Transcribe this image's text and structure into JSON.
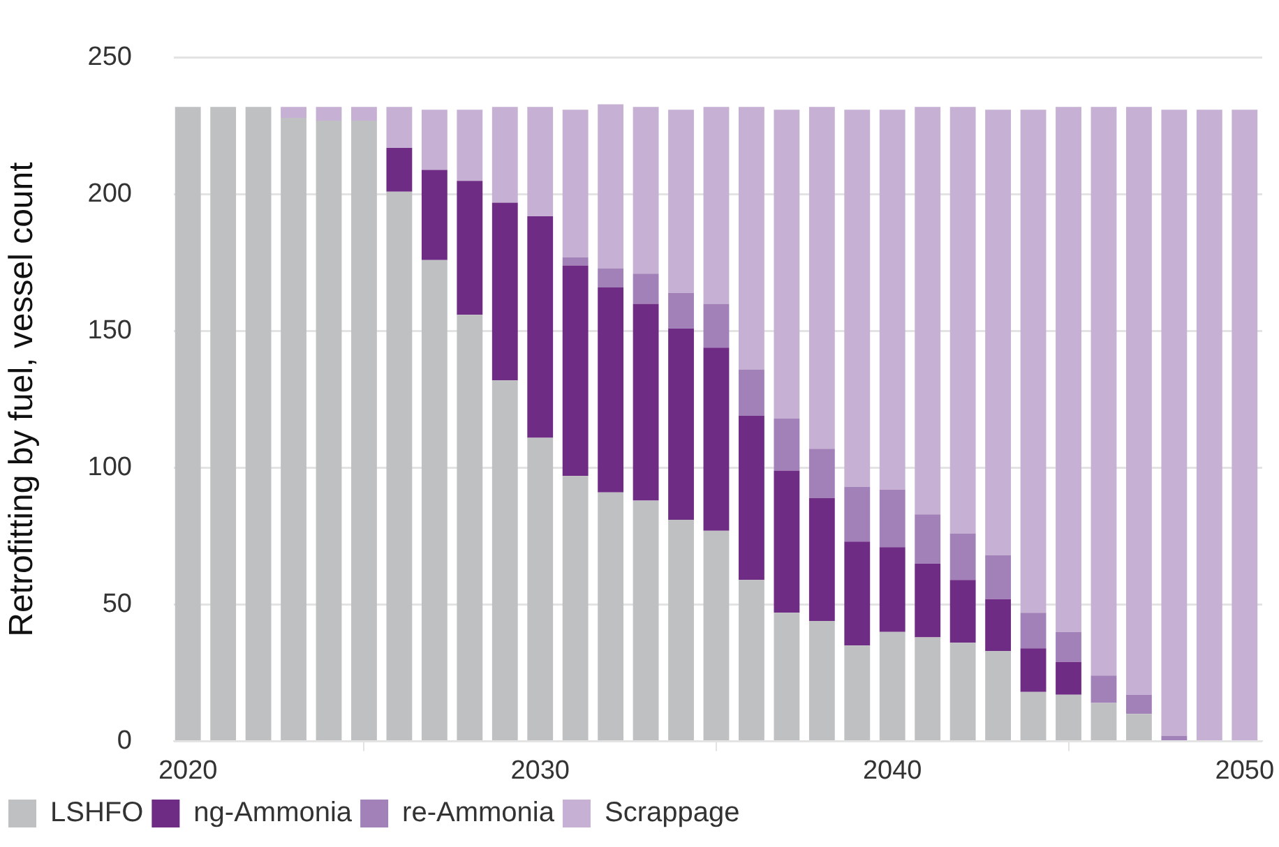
{
  "chart_data": {
    "type": "bar",
    "stacked": true,
    "ylabel": "Retrofitting by fuel, vessel count",
    "x": [
      2020,
      2021,
      2022,
      2023,
      2024,
      2025,
      2026,
      2027,
      2028,
      2029,
      2030,
      2031,
      2032,
      2033,
      2034,
      2035,
      2036,
      2037,
      2038,
      2039,
      2040,
      2041,
      2042,
      2043,
      2044,
      2045,
      2046,
      2047,
      2048,
      2049,
      2050
    ],
    "series": [
      {
        "name": "LSHFO",
        "color": "#bfc0c2",
        "values": [
          232,
          232,
          232,
          228,
          227,
          227,
          201,
          176,
          156,
          132,
          111,
          97,
          91,
          88,
          81,
          77,
          59,
          47,
          44,
          35,
          40,
          38,
          36,
          33,
          18,
          17,
          14,
          10,
          0,
          0,
          0
        ]
      },
      {
        "name": "ng-Ammonia",
        "color": "#6f2c84",
        "values": [
          0,
          0,
          0,
          0,
          0,
          0,
          16,
          33,
          49,
          65,
          81,
          77,
          75,
          72,
          70,
          67,
          60,
          52,
          45,
          38,
          31,
          27,
          23,
          19,
          16,
          12,
          0,
          0,
          0,
          0,
          0
        ]
      },
      {
        "name": "re-Ammonia",
        "color": "#a281b8",
        "values": [
          0,
          0,
          0,
          0,
          0,
          0,
          0,
          0,
          0,
          0,
          0,
          3,
          7,
          11,
          13,
          16,
          17,
          19,
          18,
          20,
          21,
          18,
          17,
          16,
          13,
          11,
          10,
          7,
          2,
          0,
          0
        ]
      },
      {
        "name": "Scrappage",
        "color": "#c6b0d4",
        "values": [
          0,
          0,
          0,
          4,
          5,
          5,
          15,
          22,
          26,
          35,
          40,
          54,
          60,
          61,
          67,
          72,
          96,
          113,
          125,
          138,
          139,
          149,
          156,
          163,
          184,
          192,
          208,
          215,
          229,
          231,
          231
        ]
      }
    ],
    "xlim": [
      2019.6,
      2050.5
    ],
    "xticks": [
      2020,
      2030,
      2040,
      2050
    ],
    "ylim": [
      0,
      250
    ],
    "yticks": [
      0,
      50,
      100,
      150,
      200,
      250
    ],
    "grid": "y",
    "legend": "bottom left"
  }
}
